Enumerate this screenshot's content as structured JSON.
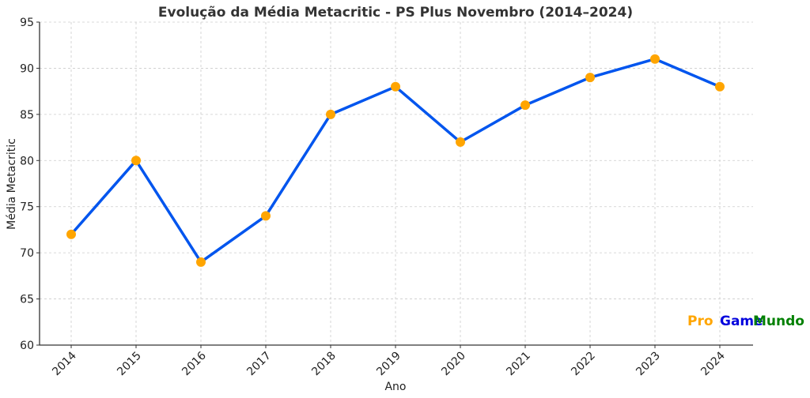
{
  "chart_data": {
    "type": "line",
    "title": "Evolução da Média Metacritic - PS Plus Novembro (2014–2024)",
    "xlabel": "Ano",
    "ylabel": "Média Metacritic",
    "categories": [
      "2014",
      "2015",
      "2016",
      "2017",
      "2018",
      "2019",
      "2020",
      "2021",
      "2022",
      "2023",
      "2024"
    ],
    "series": [
      {
        "name": "Média Metacritic",
        "values": [
          72,
          80,
          69,
          74,
          85,
          88,
          82,
          86,
          89,
          91,
          88
        ],
        "line_color": "#0055ee",
        "marker_color": "#ffa500"
      }
    ],
    "ylim": [
      60,
      95
    ],
    "yticks": [
      60,
      65,
      70,
      75,
      80,
      85,
      90,
      95
    ],
    "grid": true,
    "legend": null
  },
  "watermark": {
    "parts": [
      {
        "text": "Pro",
        "color": "#ffa500"
      },
      {
        "text": "Game",
        "color": "#0000dd"
      },
      {
        "text": "Mundo",
        "color": "#008000"
      }
    ]
  }
}
